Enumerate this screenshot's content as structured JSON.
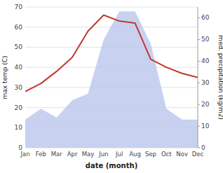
{
  "chart_data": {
    "type": "line",
    "xlabel": "date (month)",
    "ylabel": "max temp (C)",
    "y2label": "med. precipitation (kg/m2)",
    "categories": [
      "Jan",
      "Feb",
      "Mar",
      "Apr",
      "May",
      "Jun",
      "Jul",
      "Aug",
      "Sep",
      "Oct",
      "Nov",
      "Dec"
    ],
    "series": [
      {
        "type": "area",
        "axis": "y2",
        "color": "#bcc5ee",
        "values": [
          13,
          18,
          14,
          22,
          25,
          50,
          63,
          63,
          48,
          18,
          13,
          13
        ]
      },
      {
        "type": "line",
        "color": "#c0392b",
        "values": [
          28,
          32,
          38,
          45,
          58,
          66,
          63,
          62,
          44,
          40,
          37,
          35
        ]
      }
    ],
    "ylim": [
      0,
      70
    ],
    "yticks": [
      0,
      10,
      20,
      30,
      40,
      50,
      60,
      70
    ],
    "y2lim": [
      0,
      65
    ],
    "y2ticks": [
      0,
      10,
      20,
      30,
      40,
      50,
      60
    ],
    "grid": true
  }
}
